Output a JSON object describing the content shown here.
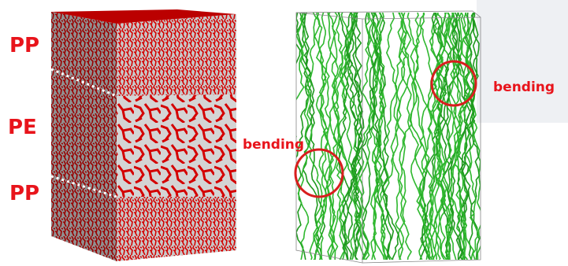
{
  "labels": {
    "top_layer": "PP",
    "middle_layer": "PE",
    "bottom_layer": "PP"
  },
  "annotations": {
    "right_bending": "bending",
    "left_bending": "bending"
  }
}
